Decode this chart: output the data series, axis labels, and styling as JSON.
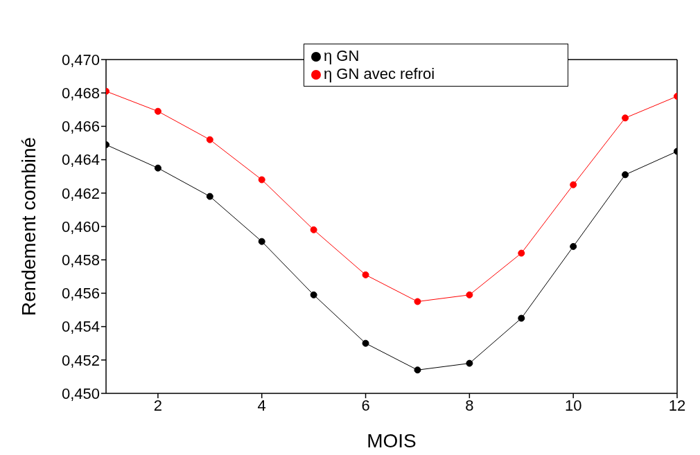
{
  "chart_data": {
    "type": "line",
    "xlabel": "MOIS",
    "ylabel": "Rendement combiné",
    "x": [
      1,
      2,
      3,
      4,
      5,
      6,
      7,
      8,
      9,
      10,
      11,
      12
    ],
    "series": [
      {
        "name": "η GN",
        "color": "#000000",
        "values": [
          0.4649,
          0.4635,
          0.4618,
          0.4591,
          0.4559,
          0.453,
          0.4514,
          0.4518,
          0.4545,
          0.4588,
          0.4631,
          0.4645
        ]
      },
      {
        "name": "η GN avec refroi",
        "color": "#ff0000",
        "values": [
          0.4681,
          0.4669,
          0.4652,
          0.4628,
          0.4598,
          0.4571,
          0.4555,
          0.4559,
          0.4584,
          0.4625,
          0.4665,
          0.4678
        ]
      }
    ],
    "xlim": [
      1,
      12
    ],
    "xticks": [
      2,
      4,
      6,
      8,
      10,
      12
    ],
    "ylim": [
      0.45,
      0.47
    ],
    "yticks": [
      {
        "value": 0.45,
        "label": "0,450"
      },
      {
        "value": 0.452,
        "label": "0,452"
      },
      {
        "value": 0.454,
        "label": "0,454"
      },
      {
        "value": 0.456,
        "label": "0,456"
      },
      {
        "value": 0.458,
        "label": "0,458"
      },
      {
        "value": 0.46,
        "label": "0,460"
      },
      {
        "value": 0.462,
        "label": "0,462"
      },
      {
        "value": 0.464,
        "label": "0,464"
      },
      {
        "value": 0.466,
        "label": "0,466"
      },
      {
        "value": 0.468,
        "label": "0,468"
      },
      {
        "value": 0.47,
        "label": "0,470"
      }
    ],
    "legend": "top",
    "marker": "circle",
    "line_style": "solid",
    "grid": false
  }
}
